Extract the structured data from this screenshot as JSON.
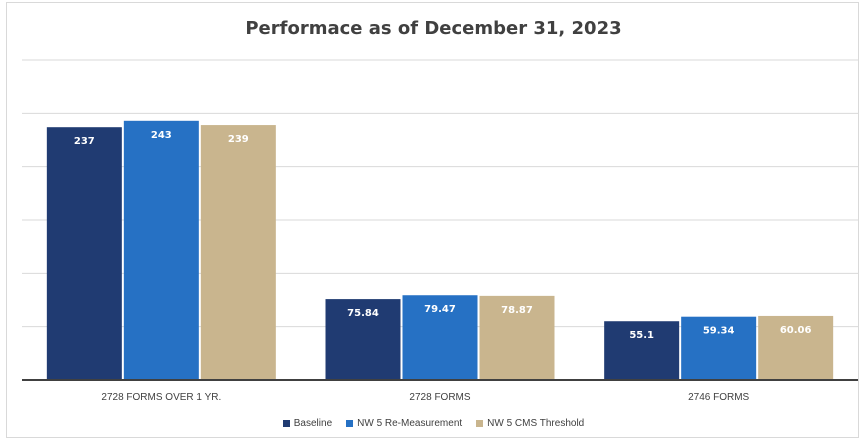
{
  "chart_data": {
    "type": "bar",
    "title": "Performace as of December 31, 2023",
    "categories": [
      "2728 FORMS OVER 1 YR.",
      "2728 FORMS",
      "2746 FORMS"
    ],
    "series": [
      {
        "name": "Baseline",
        "color": "#203b72",
        "values": [
          237,
          75.84,
          55.1
        ]
      },
      {
        "name": "NW 5 Re-Measurement",
        "color": "#2671c4",
        "values": [
          243,
          79.47,
          59.34
        ]
      },
      {
        "name": "NW 5 CMS Threshold",
        "color": "#c9b58e",
        "values": [
          239,
          78.87,
          60.06
        ]
      }
    ],
    "ylim": [
      0,
      300
    ],
    "grid": true,
    "legend": "bottom"
  }
}
